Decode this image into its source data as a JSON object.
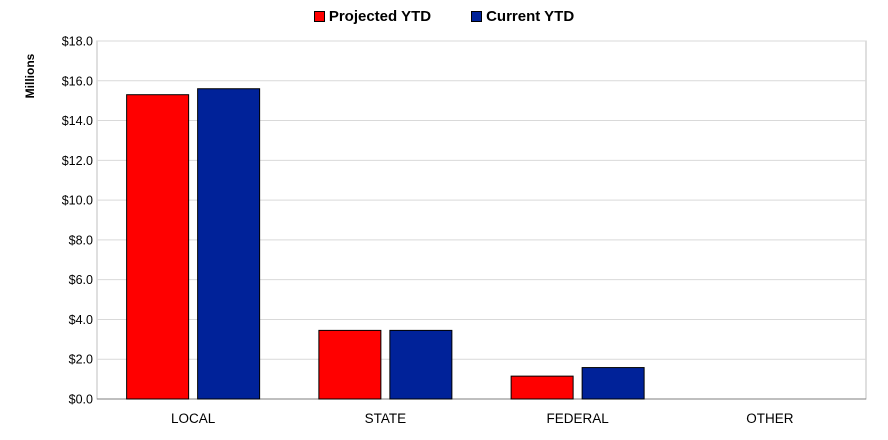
{
  "chart_data": {
    "type": "bar",
    "categories": [
      "LOCAL",
      "STATE",
      "FEDERAL",
      "OTHER"
    ],
    "series": [
      {
        "name": "Projected YTD",
        "values": [
          15.3,
          3.45,
          1.15,
          0
        ],
        "color": "#ff0000"
      },
      {
        "name": "Current YTD",
        "values": [
          15.6,
          3.45,
          1.58,
          0
        ],
        "color": "#002299"
      }
    ],
    "title": "",
    "xlabel": "",
    "ylabel": "Millions",
    "ylim": [
      0,
      18
    ],
    "yticks": [
      "$0.0",
      "$2.0",
      "$4.0",
      "$6.0",
      "$8.0",
      "$10.0",
      "$12.0",
      "$14.0",
      "$16.0",
      "$18.0"
    ],
    "grid": true,
    "legend_position": "top-center"
  }
}
